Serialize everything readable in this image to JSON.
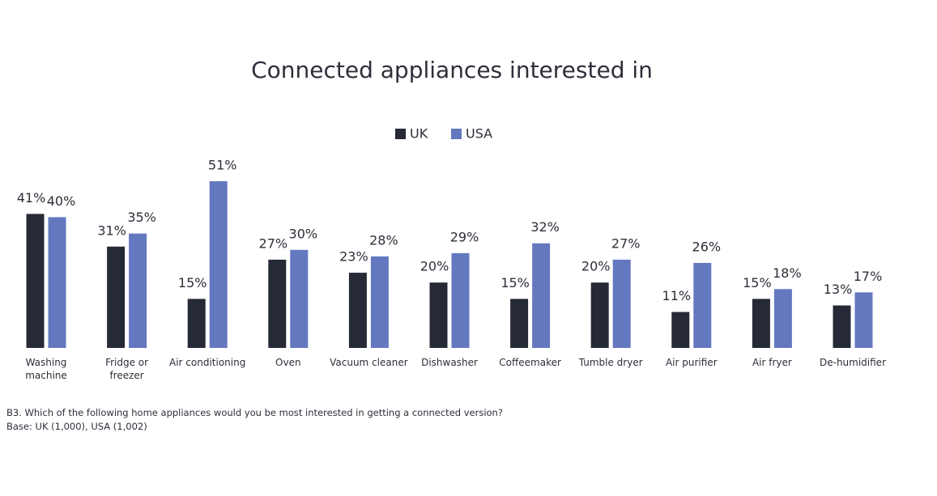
{
  "chart_data": {
    "type": "bar",
    "title": "Connected appliances interested in",
    "categories": [
      "Washing machine",
      "Fridge or freezer",
      "Air conditioning",
      "Oven",
      "Vacuum cleaner",
      "Dishwasher",
      "Coffeemaker",
      "Tumble dryer",
      "Air purifier",
      "Air fryer",
      "De-humidifier"
    ],
    "series": [
      {
        "name": "UK",
        "color": "#262a36",
        "values": [
          41,
          31,
          15,
          27,
          23,
          20,
          15,
          20,
          11,
          15,
          13
        ],
        "value_labels": [
          "41%",
          "31%",
          "15%",
          "27%",
          "23%",
          "20%",
          "15%",
          "20%",
          "11%",
          "15%",
          "13%"
        ]
      },
      {
        "name": "USA",
        "color": "#6478c0",
        "values": [
          40,
          35,
          51,
          30,
          28,
          29,
          32,
          27,
          26,
          18,
          17
        ],
        "value_labels": [
          "40%",
          "35%",
          "51%",
          "30%",
          "28%",
          "29%",
          "32%",
          "27%",
          "26%",
          "18%",
          "17%"
        ]
      }
    ],
    "legend": "top",
    "footnote": [
      "B3. Which of the following home appliances would you be most interested in getting a connected version?",
      "Base: UK (1,000), USA (1,002)"
    ]
  }
}
